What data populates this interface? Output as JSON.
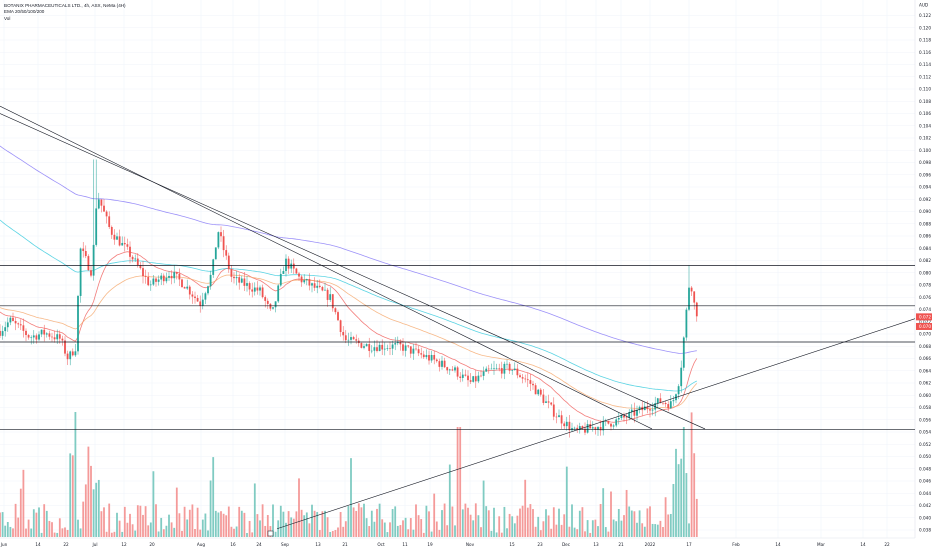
{
  "legend": {
    "title": "BOTANIX PHARMACEUTICALS LTD., 4h, ASX, NeMa (4H)",
    "ema": "EMA 20/50/100/200",
    "vol": "Vol"
  },
  "top_right_label": "AUD",
  "price_tags": {
    "last": "0.072",
    "prev": "0.070"
  },
  "chart_data": {
    "type": "candlestick",
    "y_axis_ticks": [
      0.122,
      0.12,
      0.118,
      0.116,
      0.114,
      0.112,
      0.11,
      0.108,
      0.106,
      0.104,
      0.102,
      0.1,
      0.098,
      0.096,
      0.094,
      0.092,
      0.09,
      0.088,
      0.086,
      0.084,
      0.082,
      0.08,
      0.078,
      0.076,
      0.074,
      0.072,
      0.07,
      0.068,
      0.066,
      0.064,
      0.062,
      0.06,
      0.058,
      0.056,
      0.054,
      0.052,
      0.05,
      0.048,
      0.046,
      0.044,
      0.042,
      0.04,
      0.038
    ],
    "x_axis_labels": [
      "Jun",
      "14",
      "22",
      "Jul",
      "12",
      "20",
      "Aug",
      "16",
      "24",
      "Sep",
      "13",
      "21",
      "Oct",
      "11",
      "19",
      "Nov",
      "15",
      "23",
      "Dec",
      "13",
      "21",
      "2022",
      "17",
      "Feb",
      "14",
      "Mar",
      "14",
      "22"
    ],
    "ylim": [
      0.036,
      0.1245
    ],
    "horizontal_levels": [
      0.0812,
      0.0746,
      0.0687,
      0.0544
    ],
    "series": [
      {
        "name": "EMA 20",
        "color": "#ef5350"
      },
      {
        "name": "EMA 50",
        "color": "#f4a261"
      },
      {
        "name": "EMA 100",
        "color": "#26c6da"
      },
      {
        "name": "EMA 200",
        "color": "#7b6cf6"
      }
    ],
    "up_color": "#26a69a",
    "down_color": "#ef5350"
  }
}
